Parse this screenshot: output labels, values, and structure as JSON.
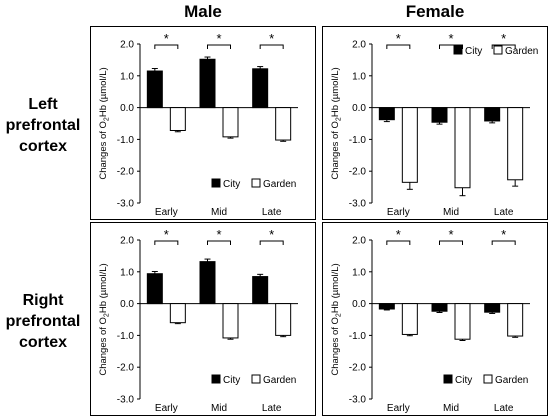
{
  "column_titles": [
    "Male",
    "Female"
  ],
  "row_titles": [
    [
      "Left",
      "prefrontal",
      "cortex"
    ],
    [
      "Right",
      "prefrontal",
      "cortex"
    ]
  ],
  "colors": {
    "city": "#000000",
    "garden": "#ffffff",
    "border": "#000000"
  },
  "chart_data": [
    {
      "type": "bar",
      "panel": "Left prefrontal cortex - Male",
      "categories": [
        "Early",
        "Mid",
        "Late"
      ],
      "series": [
        {
          "name": "City",
          "values": [
            1.15,
            1.52,
            1.22
          ],
          "errors": [
            0.08,
            0.07,
            0.07
          ]
        },
        {
          "name": "Garden",
          "values": [
            -0.72,
            -0.92,
            -1.02
          ],
          "errors": [
            0.04,
            0.04,
            0.04
          ]
        }
      ],
      "ylabel": "Changes of O2Hb (µmol/L)",
      "ylabel_parts": [
        "Changes of O",
        "2",
        "Hb (µmol/L)"
      ],
      "ylim": [
        -3.0,
        2.0
      ],
      "yticks": [
        "2.0",
        "1.0",
        "0.0",
        "-1.0",
        "-2.0",
        "-3.0"
      ],
      "significance": [
        "*",
        "*",
        "*"
      ],
      "legend_position": "bottom-right",
      "grid": false
    },
    {
      "type": "bar",
      "panel": "Left prefrontal cortex - Female",
      "categories": [
        "Early",
        "Mid",
        "Late"
      ],
      "series": [
        {
          "name": "City",
          "values": [
            -0.38,
            -0.46,
            -0.42
          ],
          "errors": [
            0.06,
            0.06,
            0.06
          ]
        },
        {
          "name": "Garden",
          "values": [
            -2.35,
            -2.52,
            -2.27
          ],
          "errors": [
            0.22,
            0.25,
            0.2
          ]
        }
      ],
      "ylabel": "Changes of O2Hb (µmol/L)",
      "ylabel_parts": [
        "Changes of O",
        "2",
        "Hb (µmol/L)"
      ],
      "ylim": [
        -3.0,
        2.0
      ],
      "yticks": [
        "2.0",
        "1.0",
        "0.0",
        "-1.0",
        "-2.0",
        "-3.0"
      ],
      "significance": [
        "*",
        "*",
        "*"
      ],
      "legend_position": "top-right",
      "grid": false
    },
    {
      "type": "bar",
      "panel": "Right prefrontal cortex - Male",
      "categories": [
        "Early",
        "Mid",
        "Late"
      ],
      "series": [
        {
          "name": "City",
          "values": [
            0.94,
            1.32,
            0.85
          ],
          "errors": [
            0.07,
            0.08,
            0.07
          ]
        },
        {
          "name": "Garden",
          "values": [
            -0.6,
            -1.08,
            -1.0
          ],
          "errors": [
            0.03,
            0.04,
            0.04
          ]
        }
      ],
      "ylabel": "Changes of O2Hb (µmol/L)",
      "ylabel_parts": [
        "Changes of O",
        "2",
        "Hb (µmol/L)"
      ],
      "ylim": [
        -3.0,
        2.0
      ],
      "yticks": [
        "2.0",
        "1.0",
        "0.0",
        "-1.0",
        "-2.0",
        "-3.0"
      ],
      "significance": [
        "*",
        "*",
        "*"
      ],
      "legend_position": "bottom-right",
      "grid": false
    },
    {
      "type": "bar",
      "panel": "Right prefrontal cortex - Female",
      "categories": [
        "Early",
        "Mid",
        "Late"
      ],
      "series": [
        {
          "name": "City",
          "values": [
            -0.17,
            -0.24,
            -0.27
          ],
          "errors": [
            0.03,
            0.04,
            0.04
          ]
        },
        {
          "name": "Garden",
          "values": [
            -0.97,
            -1.12,
            -1.02
          ],
          "errors": [
            0.04,
            0.04,
            0.04
          ]
        }
      ],
      "ylabel": "Changes of O2Hb (µmol/L)",
      "ylabel_parts": [
        "Changes of O",
        "2",
        "Hb (µmol/L)"
      ],
      "ylim": [
        -3.0,
        2.0
      ],
      "yticks": [
        "2.0",
        "1.0",
        "0.0",
        "-1.0",
        "-2.0",
        "-3.0"
      ],
      "significance": [
        "*",
        "*",
        "*"
      ],
      "legend_position": "bottom-right",
      "grid": false
    }
  ]
}
